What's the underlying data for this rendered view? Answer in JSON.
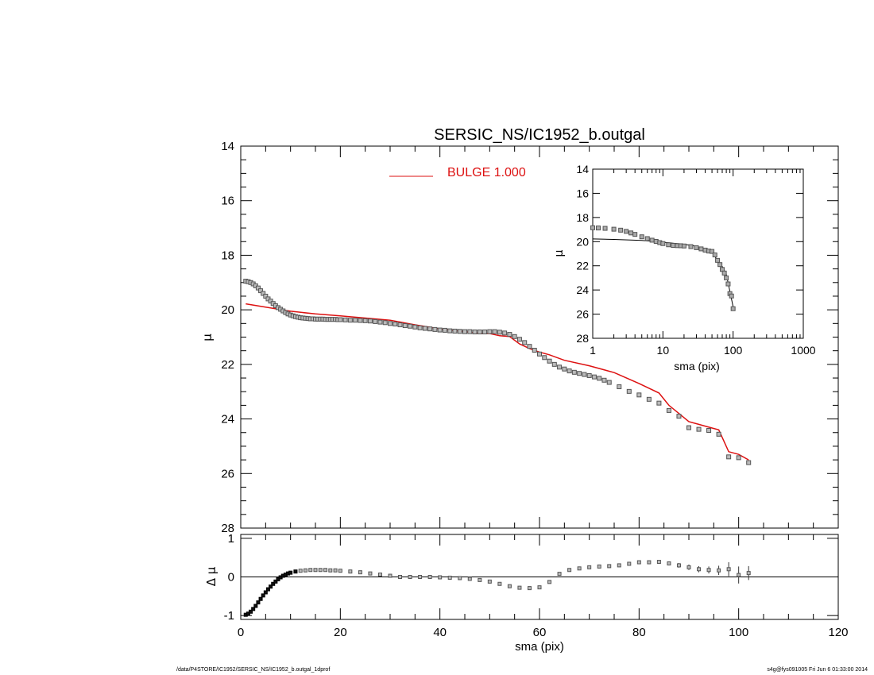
{
  "footer": {
    "path": "/data/P4STORE/IC1952/SERSIC_NS/IC1952_b.outgal_1dprof",
    "stamp": "s4g@fys091005  Fri Jun  6 01:33:00 2014"
  },
  "colors": {
    "model": "#dd1111",
    "data": "#555555",
    "axis": "#000000"
  },
  "chart_data": [
    {
      "id": "main",
      "type": "scatter",
      "title": "SERSIC_NS/IC1952_b.outgal",
      "xlabel": "",
      "ylabel": "μ",
      "xlim": [
        0,
        120
      ],
      "ylim": [
        28,
        14
      ],
      "yticks": [
        14,
        16,
        18,
        20,
        22,
        24,
        26,
        28
      ],
      "legend": {
        "label": "BULGE  1.000",
        "position": "top-center",
        "color": "#dd1111"
      },
      "series": [
        {
          "name": "data",
          "x": [
            1,
            1.5,
            2,
            2.5,
            3,
            3.5,
            4,
            4.5,
            5,
            5.5,
            6,
            6.5,
            7,
            7.5,
            8,
            8.5,
            9,
            9.5,
            10,
            10.5,
            11,
            11.5,
            12,
            12.5,
            13,
            13.5,
            14,
            14.5,
            15,
            15.5,
            16,
            16.5,
            17,
            17.5,
            18,
            18.5,
            19,
            19.5,
            20,
            21,
            22,
            23,
            24,
            25,
            26,
            27,
            28,
            29,
            30,
            31,
            32,
            33,
            34,
            35,
            36,
            37,
            38,
            39,
            40,
            41,
            42,
            43,
            44,
            45,
            46,
            47,
            48,
            49,
            50,
            51,
            52,
            53,
            54,
            55,
            56,
            57,
            58,
            59,
            60,
            61,
            62,
            63,
            64,
            65,
            66,
            67,
            68,
            69,
            70,
            71,
            72,
            73,
            74,
            76,
            78,
            80,
            82,
            84,
            86,
            88,
            90,
            92,
            94,
            96,
            98,
            100,
            102
          ],
          "y": [
            18.95,
            18.97,
            19.0,
            19.05,
            19.12,
            19.2,
            19.3,
            19.4,
            19.5,
            19.6,
            19.68,
            19.77,
            19.85,
            19.92,
            19.98,
            20.04,
            20.1,
            20.15,
            20.19,
            20.22,
            20.25,
            20.27,
            20.29,
            20.3,
            20.31,
            20.32,
            20.33,
            20.33,
            20.34,
            20.34,
            20.34,
            20.34,
            20.35,
            20.35,
            20.35,
            20.35,
            20.35,
            20.36,
            20.36,
            20.37,
            20.38,
            20.38,
            20.39,
            20.4,
            20.41,
            20.43,
            20.45,
            20.47,
            20.5,
            20.52,
            20.55,
            20.58,
            20.6,
            20.63,
            20.66,
            20.68,
            20.7,
            20.72,
            20.74,
            20.75,
            20.77,
            20.78,
            20.79,
            20.8,
            20.8,
            20.81,
            20.81,
            20.81,
            20.8,
            20.8,
            20.82,
            20.85,
            20.9,
            20.98,
            21.08,
            21.2,
            21.34,
            21.48,
            21.62,
            21.75,
            21.88,
            22.0,
            22.1,
            22.17,
            22.24,
            22.29,
            22.33,
            22.37,
            22.41,
            22.46,
            22.51,
            22.58,
            22.66,
            22.82,
            22.99,
            23.12,
            23.28,
            23.42,
            23.69,
            23.9,
            24.32,
            24.38,
            24.42,
            24.56,
            25.39,
            25.42,
            25.6
          ]
        },
        {
          "name": "BULGE  1.000",
          "x": [
            1,
            5,
            10,
            15,
            20,
            25,
            30,
            35,
            40,
            45,
            48,
            50,
            52,
            54,
            56,
            58,
            60,
            62,
            65,
            70,
            75,
            80,
            84,
            86,
            88,
            90,
            92,
            94,
            96,
            97,
            98,
            100,
            102
          ],
          "y": [
            19.78,
            19.9,
            20.05,
            20.15,
            20.22,
            20.3,
            20.38,
            20.55,
            20.7,
            20.8,
            20.86,
            20.87,
            20.95,
            20.98,
            21.25,
            21.42,
            21.55,
            21.65,
            21.85,
            22.05,
            22.3,
            22.7,
            23.05,
            23.5,
            23.8,
            24.1,
            24.2,
            24.3,
            24.4,
            24.8,
            25.2,
            25.3,
            25.5
          ]
        }
      ]
    },
    {
      "id": "inset",
      "type": "scatter",
      "title": "",
      "xlabel": "sma (pix)",
      "ylabel": "μ",
      "xscale": "log",
      "xlim": [
        1,
        1000
      ],
      "xticks": [
        1,
        10,
        100,
        1000
      ],
      "ylim": [
        28,
        14
      ],
      "yticks": [
        14,
        16,
        18,
        20,
        22,
        24,
        26,
        28
      ],
      "series": [
        {
          "name": "data",
          "x": [
            1,
            1.2,
            1.5,
            2,
            2.5,
            3,
            3.5,
            4,
            5,
            6,
            7,
            8,
            9,
            10,
            12,
            14,
            16,
            18,
            20,
            25,
            30,
            35,
            40,
            45,
            50,
            55,
            60,
            65,
            70,
            75,
            80,
            85,
            90,
            95,
            100
          ],
          "y": [
            18.85,
            18.87,
            18.9,
            18.97,
            19.05,
            19.15,
            19.28,
            19.4,
            19.6,
            19.75,
            19.88,
            19.98,
            20.08,
            20.16,
            20.26,
            20.31,
            20.33,
            20.34,
            20.36,
            20.41,
            20.5,
            20.6,
            20.7,
            20.78,
            20.81,
            21.1,
            21.55,
            21.9,
            22.3,
            22.6,
            23.0,
            23.5,
            24.3,
            24.5,
            25.55
          ]
        },
        {
          "name": "model",
          "x": [
            1,
            2,
            5,
            10,
            20,
            30,
            40,
            50,
            60,
            70,
            80,
            90,
            100
          ],
          "y": [
            19.78,
            19.82,
            19.9,
            20.05,
            20.22,
            20.38,
            20.7,
            20.87,
            21.55,
            22.05,
            22.7,
            24.1,
            25.4
          ]
        }
      ]
    },
    {
      "id": "residual",
      "type": "scatter",
      "title": "",
      "xlabel": "sma (pix)",
      "ylabel": "Δ μ",
      "xlim": [
        0,
        120
      ],
      "xticks": [
        0,
        20,
        40,
        60,
        80,
        100,
        120
      ],
      "ylim": [
        -1.1,
        1.1
      ],
      "yticks": [
        -1,
        0,
        1
      ],
      "series": [
        {
          "name": "residual",
          "x": [
            1,
            1.5,
            2,
            2.5,
            3,
            3.5,
            4,
            4.5,
            5,
            5.5,
            6,
            6.5,
            7,
            7.5,
            8,
            8.5,
            9,
            9.5,
            10,
            11,
            12,
            13,
            14,
            15,
            16,
            17,
            18,
            19,
            20,
            22,
            24,
            26,
            28,
            30,
            32,
            34,
            36,
            38,
            40,
            42,
            44,
            46,
            48,
            50,
            52,
            54,
            56,
            58,
            60,
            62,
            64,
            66,
            68,
            70,
            72,
            74,
            76,
            78,
            80,
            82,
            84,
            86,
            88,
            90,
            92,
            94,
            96,
            98,
            100,
            102
          ],
          "y": [
            -0.98,
            -0.95,
            -0.9,
            -0.83,
            -0.75,
            -0.66,
            -0.57,
            -0.48,
            -0.4,
            -0.32,
            -0.25,
            -0.18,
            -0.12,
            -0.06,
            -0.01,
            0.03,
            0.06,
            0.09,
            0.11,
            0.14,
            0.16,
            0.17,
            0.18,
            0.18,
            0.18,
            0.18,
            0.17,
            0.17,
            0.16,
            0.14,
            0.12,
            0.09,
            0.06,
            0.03,
            0.0,
            0.0,
            0.0,
            0.0,
            -0.01,
            -0.02,
            -0.03,
            -0.05,
            -0.08,
            -0.12,
            -0.18,
            -0.24,
            -0.28,
            -0.29,
            -0.27,
            -0.13,
            0.08,
            0.18,
            0.22,
            0.25,
            0.27,
            0.28,
            0.3,
            0.34,
            0.38,
            0.38,
            0.39,
            0.35,
            0.3,
            0.25,
            0.2,
            0.18,
            0.17,
            0.2,
            0.05,
            0.1
          ],
          "yerr": [
            0,
            0,
            0,
            0,
            0,
            0,
            0,
            0,
            0,
            0,
            0,
            0,
            0,
            0,
            0,
            0,
            0,
            0,
            0,
            0,
            0,
            0,
            0,
            0,
            0,
            0,
            0,
            0,
            0,
            0,
            0,
            0,
            0,
            0,
            0,
            0,
            0,
            0,
            0,
            0,
            0,
            0,
            0,
            0,
            0,
            0,
            0,
            0,
            0,
            0,
            0,
            0,
            0,
            0,
            0,
            0,
            0,
            0,
            0,
            0,
            0,
            0.05,
            0.06,
            0.07,
            0.08,
            0.09,
            0.12,
            0.18,
            0.22,
            0.18
          ]
        }
      ]
    }
  ]
}
